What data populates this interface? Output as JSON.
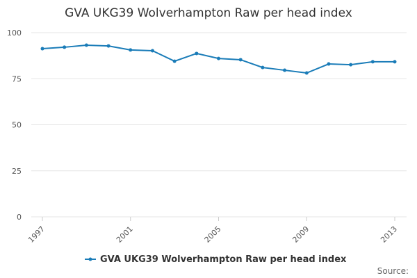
{
  "chart_data": {
    "type": "line",
    "title": "GVA UKG39 Wolverhampton Raw per head index",
    "x": [
      1997,
      1998,
      1999,
      2000,
      2001,
      2002,
      2003,
      2004,
      2005,
      2006,
      2007,
      2008,
      2009,
      2010,
      2011,
      2012,
      2013
    ],
    "series": [
      {
        "name": "GVA UKG39 Wolverhampton Raw per head index",
        "color": "#1a7cb8",
        "values": [
          91.3,
          92.1,
          93.2,
          92.8,
          90.6,
          90.2,
          84.5,
          88.7,
          86.0,
          85.3,
          81.1,
          79.6,
          78.1,
          83.0,
          82.6,
          84.2,
          84.2
        ]
      }
    ],
    "xlim": [
      1997,
      2013
    ],
    "xticks": [
      1997,
      2001,
      2005,
      2009,
      2013
    ],
    "ylim": [
      0,
      100
    ],
    "yticks": [
      0,
      25,
      50,
      75,
      100
    ],
    "grid": true,
    "source": "Source:"
  }
}
